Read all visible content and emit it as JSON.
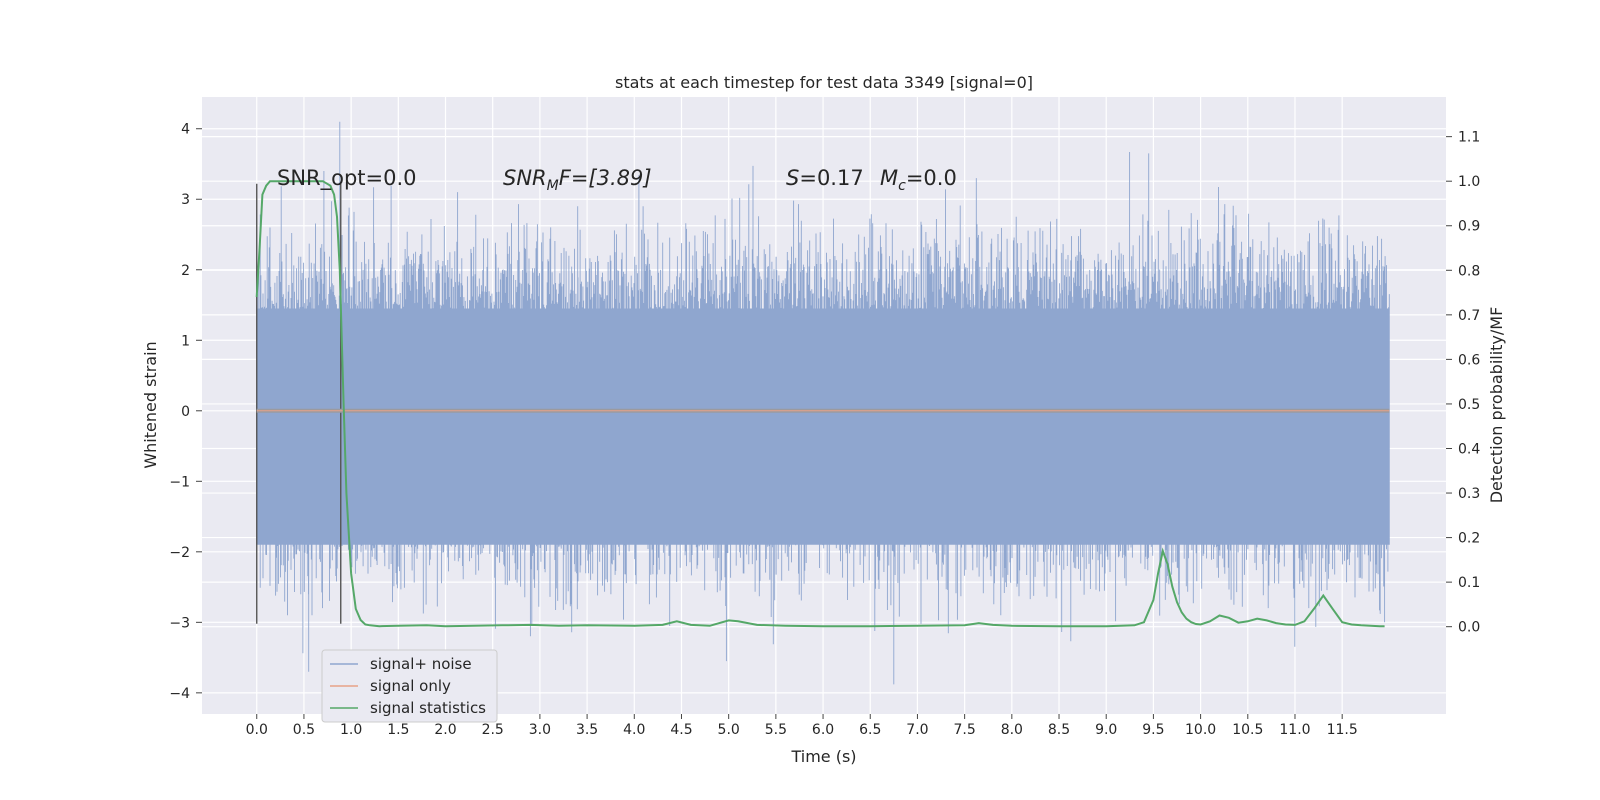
{
  "chart_data": {
    "type": "line",
    "title": "stats at each timestep for test data 3349 [signal=0]",
    "xlabel": "Time (s)",
    "ylabel_left": "Whitened strain",
    "ylabel_right": "Detection probability/MF",
    "xlim": [
      -0.58,
      12.6
    ],
    "ylim_left": [
      -4.3,
      4.45
    ],
    "ylim_right": [
      -0.196,
      1.189
    ],
    "x_ticks": [
      "0.0",
      "0.5",
      "1.0",
      "1.5",
      "2.0",
      "2.5",
      "3.0",
      "3.5",
      "4.0",
      "4.5",
      "5.0",
      "5.5",
      "6.0",
      "6.5",
      "7.0",
      "7.5",
      "8.0",
      "8.5",
      "9.0",
      "9.5",
      "10.0",
      "10.5",
      "11.0",
      "11.5"
    ],
    "y_ticks_left": [
      "4",
      "3",
      "2",
      "1",
      "0",
      "−1",
      "−2",
      "−3",
      "−4"
    ],
    "y_ticks_right": [
      "1.1",
      "1.0",
      "0.9",
      "0.8",
      "0.7",
      "0.6",
      "0.5",
      "0.4",
      "0.3",
      "0.2",
      "0.1",
      "0.0"
    ],
    "grid": true,
    "legend_position": "lower-left",
    "annotations": {
      "snr_opt": "SNR_opt=0.0",
      "snr_mf_base": "SNR",
      "snr_mf_sub": "M",
      "snr_mf_rest": "F=[3.89]",
      "s_label": "S",
      "s_value": "=0.17",
      "mc_base": "M",
      "mc_sub": "c",
      "mc_value": "=0.0"
    },
    "markers": [
      0.0,
      0.89
    ],
    "series": [
      {
        "name": "signal+ noise",
        "color": "#8fa6cf",
        "band": [
          -1.8,
          1.35
        ],
        "envelope_max": 4.1,
        "envelope_min": -3.85
      },
      {
        "name": "signal only",
        "color": "#e8a287",
        "values": "0 across all samples"
      },
      {
        "name": "signal statistics",
        "color": "#55a868",
        "axis": "right",
        "x": [
          0.0,
          0.03,
          0.06,
          0.1,
          0.14,
          0.2,
          0.3,
          0.5,
          0.7,
          0.78,
          0.82,
          0.85,
          0.88,
          0.9,
          0.92,
          0.95,
          1.0,
          1.05,
          1.1,
          1.15,
          1.2,
          1.3,
          1.5,
          1.8,
          2.0,
          2.3,
          2.6,
          2.9,
          3.2,
          3.5,
          4.0,
          4.3,
          4.45,
          4.6,
          4.8,
          5.0,
          5.1,
          5.3,
          5.6,
          6.0,
          6.5,
          7.0,
          7.5,
          7.65,
          7.8,
          8.0,
          8.5,
          9.0,
          9.3,
          9.4,
          9.5,
          9.55,
          9.6,
          9.65,
          9.7,
          9.75,
          9.8,
          9.85,
          9.9,
          9.95,
          10.0,
          10.1,
          10.2,
          10.3,
          10.4,
          10.5,
          10.6,
          10.7,
          10.8,
          10.9,
          11.0,
          11.1,
          11.2,
          11.3,
          11.4,
          11.5,
          11.6,
          11.7,
          11.8,
          11.9,
          11.95
        ],
        "values": [
          0.74,
          0.85,
          0.97,
          0.99,
          1.0,
          1.0,
          1.0,
          1.0,
          1.0,
          0.99,
          0.97,
          0.92,
          0.8,
          0.65,
          0.5,
          0.3,
          0.12,
          0.04,
          0.015,
          0.005,
          0.003,
          0.001,
          0.002,
          0.003,
          0.001,
          0.002,
          0.003,
          0.004,
          0.002,
          0.003,
          0.002,
          0.004,
          0.012,
          0.004,
          0.002,
          0.014,
          0.012,
          0.004,
          0.002,
          0.001,
          0.001,
          0.002,
          0.003,
          0.008,
          0.004,
          0.002,
          0.001,
          0.001,
          0.003,
          0.01,
          0.06,
          0.12,
          0.17,
          0.14,
          0.09,
          0.055,
          0.032,
          0.018,
          0.01,
          0.006,
          0.005,
          0.012,
          0.025,
          0.02,
          0.009,
          0.012,
          0.018,
          0.014,
          0.008,
          0.005,
          0.004,
          0.012,
          0.04,
          0.07,
          0.04,
          0.01,
          0.005,
          0.003,
          0.002,
          0.001,
          0.001
        ]
      }
    ]
  }
}
